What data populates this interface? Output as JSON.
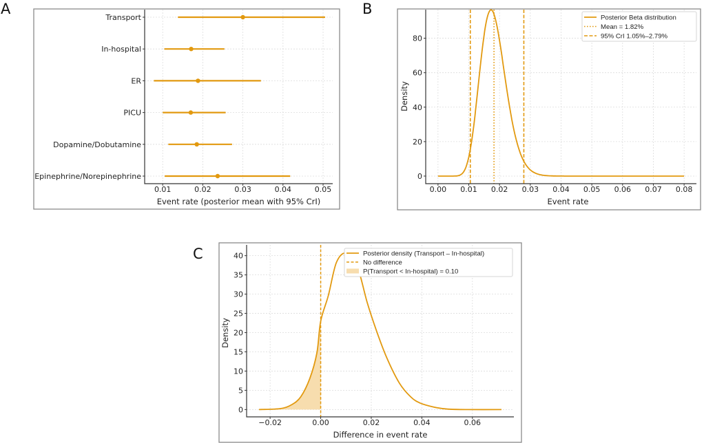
{
  "colors": {
    "accent": "#E2990F",
    "fill": "#F7DDAE",
    "grid": "#dcdcdc"
  },
  "panel_labels": [
    "A",
    "B",
    "C"
  ],
  "chart_data": [
    {
      "panel": "A",
      "type": "scatter",
      "title": "",
      "xlabel": "Event rate (posterior mean with 95% CrI)",
      "ylabel": "",
      "categories": [
        "Transport",
        "In-hospital",
        "ER",
        "PICU",
        "Dopamine/Dobutamine",
        "Epinephrine/Norepinephrine"
      ],
      "mean": [
        0.03,
        0.0171,
        0.0188,
        0.017,
        0.0185,
        0.0237
      ],
      "lower": [
        0.0138,
        0.0104,
        0.0078,
        0.01,
        0.0114,
        0.0105
      ],
      "upper": [
        0.0505,
        0.0254,
        0.0345,
        0.0257,
        0.0273,
        0.0418
      ],
      "xlim": [
        0.0055,
        0.0524
      ],
      "xticks": [
        0.01,
        0.02,
        0.03,
        0.04,
        0.05
      ],
      "xtick_labels": [
        "0.01",
        "0.02",
        "0.03",
        "0.04",
        "0.05"
      ],
      "grid": true
    },
    {
      "panel": "B",
      "type": "line",
      "title": "",
      "xlabel": "Event rate",
      "ylabel": "Density",
      "distribution": {
        "family": "beta",
        "alpha": 18.2,
        "beta": 981.8,
        "x_range": [
          0,
          0.08
        ]
      },
      "mean_line": 0.0182,
      "cri_lines": [
        0.0105,
        0.0279
      ],
      "xlim": [
        -0.004,
        0.084
      ],
      "ylim": [
        -4.4,
        96.6
      ],
      "xticks": [
        0,
        0.01,
        0.02,
        0.03,
        0.04,
        0.05,
        0.06,
        0.07,
        0.08
      ],
      "xtick_labels": [
        "0.00",
        "0.01",
        "0.02",
        "0.03",
        "0.04",
        "0.05",
        "0.06",
        "0.07",
        "0.08"
      ],
      "yticks": [
        0,
        20,
        40,
        60,
        80
      ],
      "ytick_labels": [
        "0",
        "20",
        "40",
        "60",
        "80"
      ],
      "legend": {
        "position": "top-right",
        "entries": [
          "Posterior Beta distribution",
          "Mean = 1.82%",
          "95% CrI 1.05%–2.79%"
        ]
      },
      "grid": true
    },
    {
      "panel": "C",
      "type": "area",
      "title": "",
      "xlabel": "Difference in event rate",
      "ylabel": "Density",
      "x": [
        -0.0244,
        -0.016,
        -0.0115,
        -0.0079,
        -0.0043,
        -0.0015,
        0.0,
        0.003,
        0.0062,
        0.0101,
        0.0143,
        0.0184,
        0.022,
        0.0261,
        0.0311,
        0.0356,
        0.0393,
        0.0447,
        0.0502,
        0.0583,
        0.0715
      ],
      "y": [
        0,
        0.24,
        1.25,
        3.3,
        8.1,
        14.7,
        23.0,
        29.6,
        38.2,
        40.7,
        37.6,
        27.8,
        20.6,
        13.5,
        6.9,
        3.3,
        1.7,
        0.66,
        0.12,
        0,
        0
      ],
      "no_difference_line": 0,
      "shade_below": 0,
      "xlim": [
        -0.0293,
        0.0764
      ],
      "ylim": [
        -1.9,
        42.8
      ],
      "xticks": [
        -0.02,
        0,
        0.02,
        0.04,
        0.06
      ],
      "xtick_labels": [
        "−0.02",
        "0.00",
        "0.02",
        "0.04",
        "0.06"
      ],
      "yticks": [
        0,
        5,
        10,
        15,
        20,
        25,
        30,
        35,
        40
      ],
      "ytick_labels": [
        "0",
        "5",
        "10",
        "15",
        "20",
        "25",
        "30",
        "35",
        "40"
      ],
      "legend": {
        "position": "top-right",
        "entries": [
          "Posterior density (Transport – In-hospital)",
          "No difference",
          "P(Transport < In-hospital) = 0.10"
        ]
      },
      "grid": true
    }
  ]
}
